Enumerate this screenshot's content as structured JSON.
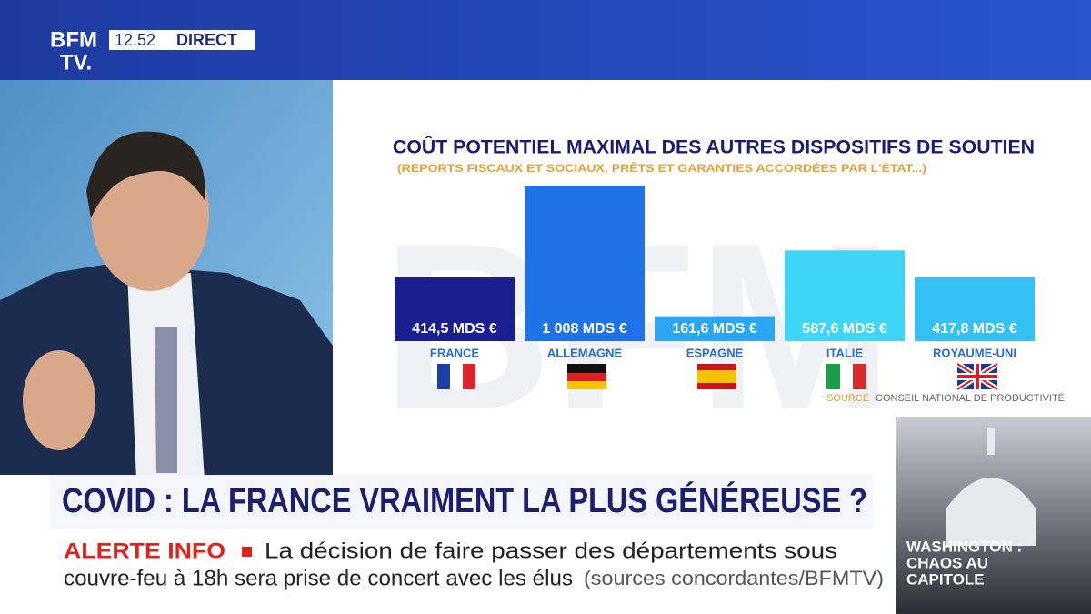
{
  "header": {
    "logo": [
      "BFM",
      "TV."
    ],
    "time": "12.52",
    "live": "DIRECT"
  },
  "chart_data": {
    "type": "bar",
    "title": "COÛT POTENTIEL MAXIMAL DES AUTRES DISPOSITIFS DE SOUTIEN",
    "subtitle": "(REPORTS FISCAUX ET SOCIAUX, PRÊTS ET GARANTIES ACCORDÉES PAR L'ÉTAT...)",
    "categories": [
      "FRANCE",
      "ALLEMAGNE",
      "ESPAGNE",
      "ITALIE",
      "ROYAUME-UNI"
    ],
    "values": [
      414.5,
      1008,
      161.6,
      587.6,
      417.8
    ],
    "value_labels": [
      "414,5 MDS €",
      "1 008 MDS €",
      "161,6 MDS €",
      "587,6 MDS €",
      "417,8 MDS €"
    ],
    "colors": [
      "#1a1f8f",
      "#1f72e8",
      "#2ba6f2",
      "#3fd5f6",
      "#36c1f5"
    ],
    "source_label": "SOURCE",
    "source": "CONSEIL NATIONAL DE PRODUCTIVITÉ"
  },
  "headline": "COVID : LA FRANCE VRAIMENT LA PLUS GÉNÉREUSE ?",
  "ticker": {
    "label": "ALERTE INFO",
    "lines": [
      "La décision de faire passer des départements sous",
      "couvre-feu à 18h sera prise de concert avec les élus"
    ],
    "credit": "(sources concordantes/BFMTV)"
  },
  "side_story": {
    "lines": [
      "WASHINGTON :",
      "CHAOS AU",
      "CAPITOLE"
    ]
  }
}
